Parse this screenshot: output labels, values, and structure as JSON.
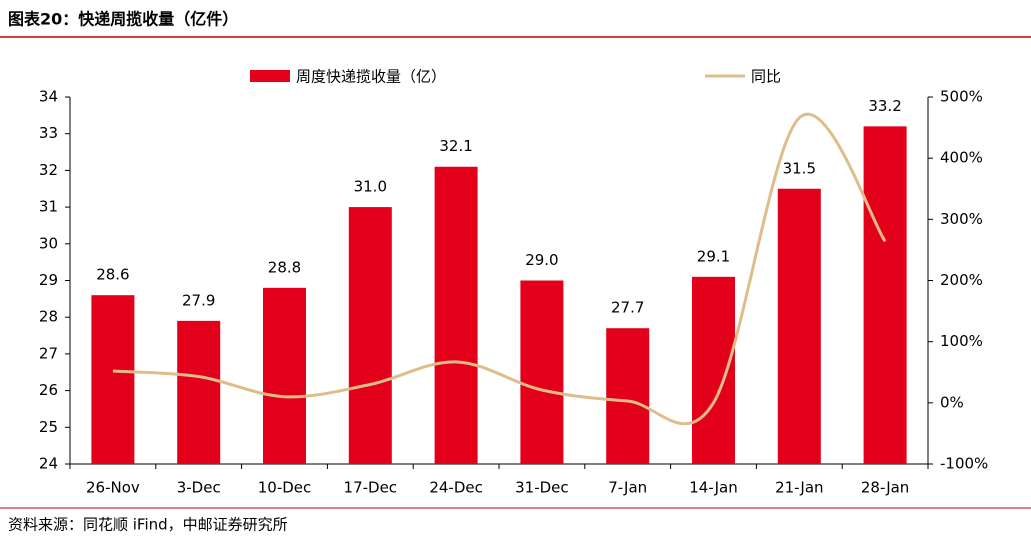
{
  "chart_data": {
    "type": "combo",
    "title": "图表20：快递周揽收量（亿件）",
    "source": "资料来源：同花顺 iFind，中邮证券研究所",
    "categories": [
      "26-Nov",
      "3-Dec",
      "10-Dec",
      "17-Dec",
      "24-Dec",
      "31-Dec",
      "7-Jan",
      "14-Jan",
      "21-Jan",
      "28-Jan"
    ],
    "series": [
      {
        "name": "周度快递揽收量（亿）",
        "type": "bar",
        "color": "#e2001a",
        "values": [
          28.6,
          27.9,
          28.8,
          31.0,
          32.1,
          29.0,
          27.7,
          29.1,
          31.5,
          33.2
        ],
        "value_labels": [
          "28.6",
          "27.9",
          "28.8",
          "31.0",
          "32.1",
          "29.0",
          "27.7",
          "29.1",
          "31.5",
          "33.2"
        ]
      },
      {
        "name": "同比",
        "type": "line",
        "axis": "y2",
        "color": "#dfbd8a",
        "values": [
          52,
          43,
          10,
          30,
          67,
          21,
          3,
          0,
          466,
          264
        ]
      }
    ],
    "ylim": [
      24,
      34
    ],
    "yticks": [
      24,
      25,
      26,
      27,
      28,
      29,
      30,
      31,
      32,
      33,
      34
    ],
    "y2lim": [
      -100,
      500
    ],
    "y2ticks": [
      {
        "value": -100,
        "label": "-100%"
      },
      {
        "value": 0,
        "label": "0%"
      },
      {
        "value": 100,
        "label": "100%"
      },
      {
        "value": 200,
        "label": "200%"
      },
      {
        "value": 300,
        "label": "300%"
      },
      {
        "value": 400,
        "label": "400%"
      },
      {
        "value": 500,
        "label": "500%"
      }
    ],
    "legend": "top"
  }
}
